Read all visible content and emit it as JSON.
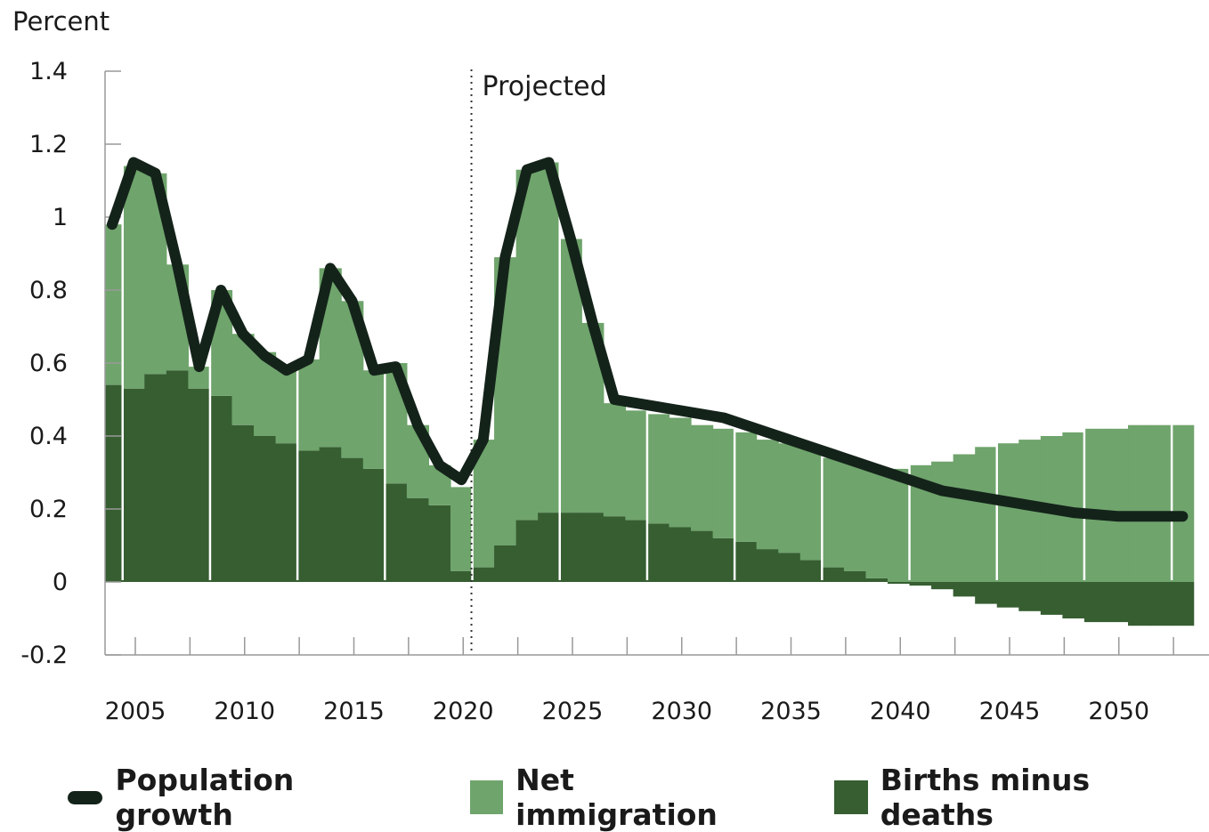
{
  "chart_data": {
    "type": "bar",
    "stacked": true,
    "ylabel": "Percent",
    "ylim": [
      -0.2,
      1.4
    ],
    "yticks": [
      1.4,
      1.2,
      1,
      0.8,
      0.6,
      0.4,
      0.2,
      0,
      -0.2
    ],
    "xlim": [
      2004,
      2054
    ],
    "xticks": [
      2005,
      2010,
      2015,
      2020,
      2025,
      2030,
      2035,
      2040,
      2045,
      2050
    ],
    "annotation": {
      "label": "Projected",
      "x": 2020.5
    },
    "colors": {
      "net_immigration": "#6fa46c",
      "births_minus_deaths": "#365e31",
      "population_growth": "#14231a"
    },
    "legend": [
      "Population growth",
      "Net immigration",
      "Births minus deaths"
    ],
    "years": [
      2004,
      2005,
      2006,
      2007,
      2008,
      2009,
      2010,
      2011,
      2012,
      2013,
      2014,
      2015,
      2016,
      2017,
      2018,
      2019,
      2020,
      2021,
      2022,
      2023,
      2024,
      2025,
      2026,
      2027,
      2028,
      2029,
      2030,
      2031,
      2032,
      2033,
      2034,
      2035,
      2036,
      2037,
      2038,
      2039,
      2040,
      2041,
      2042,
      2043,
      2044,
      2045,
      2046,
      2047,
      2048,
      2049,
      2050,
      2051,
      2052,
      2053
    ],
    "series": [
      {
        "name": "Births minus deaths",
        "kind": "bar",
        "values": [
          0.54,
          0.53,
          0.57,
          0.58,
          0.53,
          0.51,
          0.43,
          0.4,
          0.38,
          0.36,
          0.37,
          0.34,
          0.31,
          0.27,
          0.23,
          0.21,
          0.03,
          0.04,
          0.1,
          0.17,
          0.19,
          0.19,
          0.19,
          0.18,
          0.17,
          0.16,
          0.15,
          0.14,
          0.12,
          0.11,
          0.09,
          0.08,
          0.06,
          0.04,
          0.03,
          0.01,
          -0.005,
          -0.01,
          -0.02,
          -0.04,
          -0.06,
          -0.07,
          -0.08,
          -0.09,
          -0.1,
          -0.11,
          -0.11,
          -0.12,
          -0.12,
          -0.12
        ]
      },
      {
        "name": "Net immigration",
        "kind": "bar",
        "values": [
          0.44,
          0.61,
          0.55,
          0.29,
          0.06,
          0.29,
          0.25,
          0.23,
          0.2,
          0.25,
          0.49,
          0.43,
          0.27,
          0.33,
          0.2,
          0.11,
          0.23,
          0.35,
          0.79,
          0.96,
          0.96,
          0.75,
          0.52,
          0.31,
          0.3,
          0.3,
          0.3,
          0.29,
          0.3,
          0.3,
          0.3,
          0.3,
          0.31,
          0.3,
          0.3,
          0.3,
          0.31,
          0.32,
          0.33,
          0.35,
          0.37,
          0.38,
          0.39,
          0.4,
          0.41,
          0.42,
          0.42,
          0.43,
          0.43,
          0.43
        ]
      },
      {
        "name": "Population growth",
        "kind": "line",
        "values": [
          0.98,
          1.15,
          1.12,
          0.87,
          0.59,
          0.8,
          0.68,
          0.62,
          0.58,
          0.61,
          0.86,
          0.77,
          0.58,
          0.59,
          0.43,
          0.32,
          0.28,
          0.39,
          0.89,
          1.13,
          1.15,
          0.94,
          0.71,
          0.5,
          0.49,
          0.48,
          0.47,
          0.46,
          0.45,
          0.43,
          0.41,
          0.39,
          0.37,
          0.35,
          0.33,
          0.31,
          0.29,
          0.27,
          0.25,
          0.24,
          0.23,
          0.22,
          0.21,
          0.2,
          0.19,
          0.185,
          0.18,
          0.18,
          0.18,
          0.18
        ]
      }
    ]
  }
}
